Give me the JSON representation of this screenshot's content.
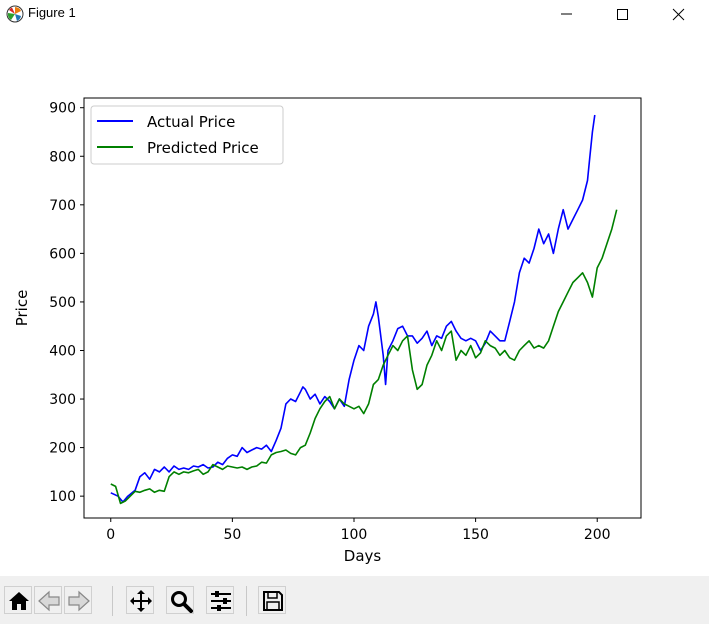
{
  "window": {
    "title": "Figure 1",
    "icons": {
      "app": "matplotlib-logo-icon",
      "minimize": "minimize-icon",
      "maximize": "maximize-icon",
      "close": "close-icon"
    }
  },
  "toolbar": {
    "buttons": [
      {
        "name": "home-button",
        "icon": "home-icon"
      },
      {
        "name": "back-button",
        "icon": "arrow-left-icon"
      },
      {
        "name": "forward-button",
        "icon": "arrow-right-icon"
      },
      {
        "name": "pan-button",
        "icon": "move-icon"
      },
      {
        "name": "zoom-button",
        "icon": "magnifier-icon"
      },
      {
        "name": "configure-subplots-button",
        "icon": "sliders-icon"
      },
      {
        "name": "save-button",
        "icon": "floppy-disk-icon"
      }
    ]
  },
  "chart_data": {
    "type": "line",
    "title": "",
    "xlabel": "Days",
    "ylabel": "Price",
    "xlim": [
      -11,
      218
    ],
    "ylim": [
      55,
      920
    ],
    "xticks": [
      0,
      50,
      100,
      150,
      200
    ],
    "yticks": [
      100,
      200,
      300,
      400,
      500,
      600,
      700,
      800,
      900
    ],
    "grid": false,
    "legend_position": "top-left",
    "series": [
      {
        "name": "Actual Price",
        "color": "#0000ff",
        "x": [
          0,
          3,
          5,
          7,
          10,
          12,
          14,
          16,
          18,
          20,
          22,
          24,
          26,
          28,
          30,
          32,
          34,
          36,
          38,
          40,
          42,
          44,
          46,
          48,
          50,
          52,
          54,
          56,
          58,
          60,
          62,
          64,
          66,
          68,
          70,
          72,
          74,
          76,
          78,
          79,
          80,
          82,
          84,
          86,
          88,
          90,
          92,
          94,
          96,
          98,
          100,
          102,
          104,
          106,
          108,
          109,
          110,
          112,
          113,
          114,
          116,
          118,
          120,
          122,
          124,
          126,
          128,
          130,
          132,
          134,
          136,
          138,
          140,
          142,
          144,
          146,
          148,
          150,
          152,
          154,
          156,
          158,
          160,
          162,
          164,
          166,
          168,
          170,
          172,
          174,
          176,
          178,
          180,
          182,
          184,
          186,
          188,
          190,
          192,
          194,
          196,
          197,
          198,
          199
        ],
        "values": [
          107,
          100,
          88,
          100,
          112,
          140,
          148,
          135,
          155,
          150,
          160,
          150,
          162,
          155,
          158,
          155,
          162,
          160,
          165,
          158,
          160,
          170,
          165,
          178,
          185,
          182,
          200,
          190,
          195,
          200,
          197,
          205,
          192,
          215,
          240,
          290,
          300,
          295,
          315,
          325,
          320,
          300,
          310,
          290,
          305,
          295,
          280,
          300,
          285,
          340,
          380,
          410,
          400,
          450,
          475,
          500,
          470,
          390,
          330,
          400,
          420,
          445,
          450,
          430,
          430,
          415,
          425,
          440,
          410,
          430,
          425,
          450,
          460,
          440,
          425,
          420,
          425,
          420,
          400,
          415,
          440,
          430,
          420,
          420,
          460,
          500,
          560,
          590,
          580,
          610,
          650,
          620,
          640,
          600,
          650,
          690,
          650,
          670,
          690,
          710,
          750,
          800,
          850,
          885
        ]
      },
      {
        "name": "Predicted Price",
        "color": "#008000",
        "x": [
          0,
          2,
          4,
          6,
          8,
          10,
          12,
          14,
          16,
          18,
          20,
          22,
          24,
          26,
          28,
          30,
          32,
          34,
          36,
          38,
          40,
          42,
          44,
          46,
          48,
          50,
          52,
          54,
          56,
          58,
          60,
          62,
          64,
          66,
          68,
          70,
          72,
          74,
          76,
          78,
          80,
          82,
          84,
          86,
          88,
          90,
          92,
          94,
          96,
          98,
          100,
          102,
          104,
          106,
          108,
          110,
          112,
          114,
          116,
          118,
          120,
          122,
          124,
          126,
          128,
          130,
          132,
          134,
          136,
          138,
          140,
          142,
          144,
          146,
          148,
          150,
          152,
          154,
          156,
          158,
          160,
          162,
          164,
          166,
          168,
          170,
          172,
          174,
          176,
          178,
          180,
          182,
          184,
          186,
          188,
          190,
          192,
          194,
          196,
          198,
          200,
          202,
          204,
          206,
          208
        ],
        "values": [
          125,
          120,
          85,
          90,
          100,
          110,
          108,
          112,
          115,
          108,
          112,
          110,
          140,
          150,
          145,
          150,
          148,
          152,
          155,
          145,
          150,
          165,
          160,
          155,
          162,
          160,
          158,
          160,
          155,
          160,
          162,
          170,
          168,
          185,
          190,
          192,
          195,
          188,
          185,
          200,
          205,
          230,
          260,
          280,
          295,
          305,
          280,
          300,
          290,
          285,
          280,
          285,
          270,
          290,
          330,
          340,
          370,
          390,
          410,
          400,
          420,
          430,
          360,
          320,
          330,
          370,
          390,
          420,
          400,
          430,
          440,
          380,
          400,
          390,
          410,
          385,
          395,
          420,
          410,
          405,
          390,
          400,
          385,
          380,
          400,
          410,
          420,
          405,
          410,
          405,
          420,
          450,
          480,
          500,
          520,
          540,
          550,
          560,
          540,
          510,
          570,
          590,
          620,
          650,
          690
        ]
      }
    ]
  }
}
